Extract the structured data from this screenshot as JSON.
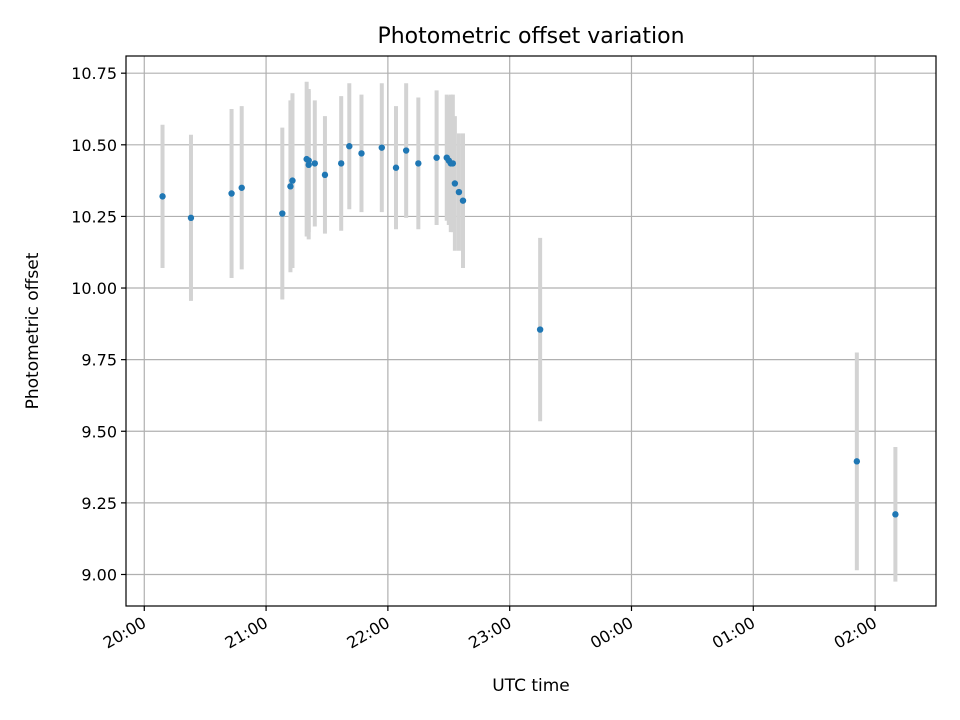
{
  "chart_data": {
    "type": "scatter",
    "title": "Photometric offset variation",
    "xlabel": "UTC time",
    "ylabel": "Photometric offset",
    "x_axis_type": "time",
    "xlim": [
      "19:51",
      "02:30"
    ],
    "ylim": [
      8.89,
      10.81
    ],
    "grid": true,
    "legend": "none",
    "marker_color": "#1f77b4",
    "errorbar_color": "#d3d3d3",
    "x_ticks": [
      "20:00",
      "21:00",
      "22:00",
      "23:00",
      "00:00",
      "01:00",
      "02:00"
    ],
    "y_ticks": [
      "9.00",
      "9.25",
      "9.50",
      "9.75",
      "10.00",
      "10.25",
      "10.50",
      "10.75"
    ],
    "points": [
      {
        "x": "20:09",
        "y": 10.32,
        "err": 0.25
      },
      {
        "x": "20:23",
        "y": 10.245,
        "err": 0.29
      },
      {
        "x": "20:43",
        "y": 10.33,
        "err": 0.295
      },
      {
        "x": "20:48",
        "y": 10.35,
        "err": 0.285
      },
      {
        "x": "21:08",
        "y": 10.26,
        "err": 0.3
      },
      {
        "x": "21:12",
        "y": 10.355,
        "err": 0.3
      },
      {
        "x": "21:13",
        "y": 10.375,
        "err": 0.305
      },
      {
        "x": "21:20",
        "y": 10.45,
        "err": 0.27
      },
      {
        "x": "21:21",
        "y": 10.43,
        "err": 0.26
      },
      {
        "x": "21:21",
        "y": 10.445,
        "err": 0.25
      },
      {
        "x": "21:24",
        "y": 10.435,
        "err": 0.22
      },
      {
        "x": "21:29",
        "y": 10.395,
        "err": 0.205
      },
      {
        "x": "21:37",
        "y": 10.435,
        "err": 0.235
      },
      {
        "x": "21:41",
        "y": 10.495,
        "err": 0.22
      },
      {
        "x": "21:47",
        "y": 10.47,
        "err": 0.205
      },
      {
        "x": "21:57",
        "y": 10.49,
        "err": 0.225
      },
      {
        "x": "22:04",
        "y": 10.42,
        "err": 0.215
      },
      {
        "x": "22:09",
        "y": 10.48,
        "err": 0.235
      },
      {
        "x": "22:15",
        "y": 10.435,
        "err": 0.23
      },
      {
        "x": "22:24",
        "y": 10.455,
        "err": 0.235
      },
      {
        "x": "22:29",
        "y": 10.455,
        "err": 0.22
      },
      {
        "x": "22:30",
        "y": 10.445,
        "err": 0.225
      },
      {
        "x": "22:31",
        "y": 10.435,
        "err": 0.24
      },
      {
        "x": "22:32",
        "y": 10.435,
        "err": 0.24
      },
      {
        "x": "22:33",
        "y": 10.365,
        "err": 0.235
      },
      {
        "x": "22:35",
        "y": 10.335,
        "err": 0.205
      },
      {
        "x": "22:37",
        "y": 10.305,
        "err": 0.235
      },
      {
        "x": "23:15",
        "y": 9.855,
        "err": 0.32
      },
      {
        "x": "01:51",
        "y": 9.395,
        "err": 0.38
      },
      {
        "x": "02:10",
        "y": 9.21,
        "err": 0.235
      }
    ]
  }
}
